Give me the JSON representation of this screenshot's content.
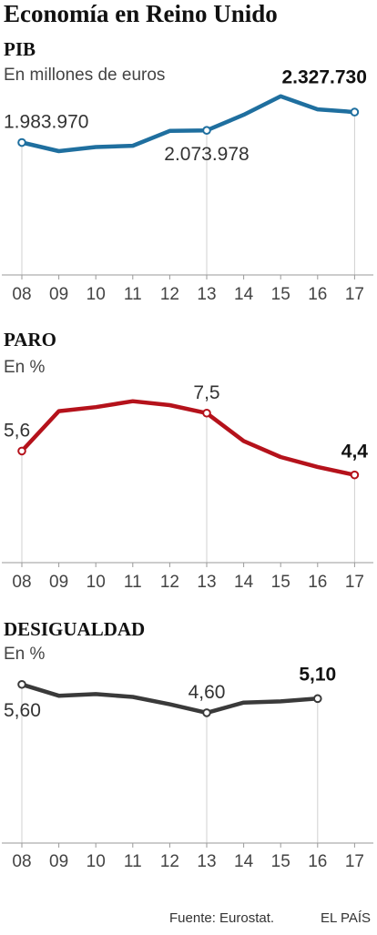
{
  "title": "Economía en Reino Unido",
  "footer": {
    "source": "Fuente: Eurostat.",
    "brand": "EL PAÍS"
  },
  "chart_data": [
    {
      "type": "line",
      "title": "PIB",
      "subtitle": "En millones de euros",
      "categories": [
        "08",
        "09",
        "10",
        "11",
        "12",
        "13",
        "14",
        "15",
        "16",
        "17"
      ],
      "color": "#1f6f9f",
      "series": [
        {
          "values": [
            1983970,
            1920000,
            1950000,
            1960000,
            2070000,
            2073978,
            2190000,
            2327730,
            2230000,
            2210000
          ]
        }
      ],
      "ylim": [
        1000000,
        2400000
      ],
      "annotations": [
        {
          "index": 0,
          "text": "1.983.970",
          "bold": false
        },
        {
          "index": 5,
          "text": "2.073.978",
          "bold": false
        },
        {
          "index": 7,
          "text": "2.327.730",
          "bold": true
        }
      ],
      "markers": [
        0,
        5,
        9
      ],
      "guides": [
        0,
        5,
        9
      ]
    },
    {
      "type": "line",
      "title": "PARO",
      "subtitle": "En %",
      "categories": [
        "08",
        "09",
        "10",
        "11",
        "12",
        "13",
        "14",
        "15",
        "16",
        "17"
      ],
      "color": "#b5121b",
      "series": [
        {
          "values": [
            5.6,
            7.6,
            7.8,
            8.1,
            7.9,
            7.5,
            6.1,
            5.3,
            4.8,
            4.4
          ]
        }
      ],
      "ylim": [
        0,
        9.5
      ],
      "annotations": [
        {
          "index": 0,
          "text": "5,6",
          "bold": false
        },
        {
          "index": 5,
          "text": "7,5",
          "bold": false
        },
        {
          "index": 9,
          "text": "4,4",
          "bold": true
        }
      ],
      "markers": [
        0,
        5,
        9
      ],
      "guides": [
        0,
        5,
        9
      ]
    },
    {
      "type": "line",
      "title": "DESIGUALDAD",
      "subtitle": "En %",
      "categories": [
        "08",
        "09",
        "10",
        "11",
        "12",
        "13",
        "14",
        "15",
        "16",
        "17"
      ],
      "color": "#3a3a3a",
      "series": [
        {
          "values": [
            5.6,
            5.2,
            5.26,
            5.16,
            4.9,
            4.6,
            4.96,
            5.0,
            5.1,
            null
          ]
        }
      ],
      "ylim": [
        0,
        6.3
      ],
      "annotations": [
        {
          "index": 0,
          "text": "5,60",
          "bold": false
        },
        {
          "index": 5,
          "text": "4,60",
          "bold": false
        },
        {
          "index": 8,
          "text": "5,10",
          "bold": true
        }
      ],
      "markers": [
        0,
        5,
        8
      ],
      "guides": [
        0,
        5,
        8
      ]
    }
  ]
}
